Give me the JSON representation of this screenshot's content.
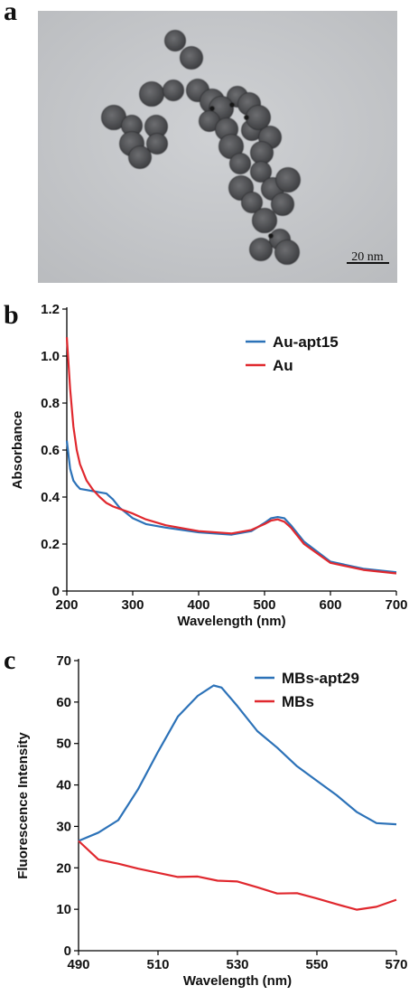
{
  "panels": {
    "a": {
      "letter": "a",
      "scale_bar_label": "20 nm"
    },
    "b": {
      "letter": "b"
    },
    "c": {
      "letter": "c"
    }
  },
  "colors": {
    "blue": "#2c72b8",
    "red": "#e0282e"
  },
  "chart_data": [
    {
      "type": "line",
      "xlabel": "Wavelength (nm)",
      "ylabel": "Absorbance",
      "xlim": [
        200,
        700
      ],
      "ylim": [
        0,
        1.2
      ],
      "xticks": [
        200,
        300,
        400,
        500,
        600,
        700
      ],
      "yticks": [
        0,
        0.2,
        0.4,
        0.6,
        0.8,
        1.0,
        1.2
      ],
      "ytick_labels": [
        "0",
        "0.2",
        "0.4",
        "0.6",
        "0.8",
        "1.0",
        "1.2"
      ],
      "grid": false,
      "legend": "top-right",
      "series": [
        {
          "name": "Au-apt15",
          "color": "#2c72b8",
          "x": [
            200,
            205,
            210,
            215,
            220,
            230,
            240,
            250,
            260,
            270,
            280,
            300,
            320,
            350,
            400,
            450,
            480,
            500,
            510,
            520,
            530,
            540,
            560,
            600,
            650,
            700
          ],
          "y": [
            0.64,
            0.52,
            0.47,
            0.45,
            0.435,
            0.43,
            0.425,
            0.42,
            0.415,
            0.39,
            0.355,
            0.31,
            0.285,
            0.27,
            0.25,
            0.24,
            0.255,
            0.29,
            0.31,
            0.315,
            0.31,
            0.28,
            0.21,
            0.125,
            0.095,
            0.08
          ]
        },
        {
          "name": "Au",
          "color": "#e0282e",
          "x": [
            200,
            205,
            210,
            215,
            220,
            230,
            240,
            250,
            260,
            270,
            280,
            300,
            320,
            350,
            400,
            450,
            480,
            500,
            510,
            520,
            530,
            540,
            560,
            600,
            650,
            700
          ],
          "y": [
            1.08,
            0.86,
            0.7,
            0.6,
            0.54,
            0.47,
            0.43,
            0.4,
            0.375,
            0.36,
            0.35,
            0.33,
            0.305,
            0.28,
            0.255,
            0.245,
            0.26,
            0.285,
            0.3,
            0.305,
            0.295,
            0.27,
            0.2,
            0.12,
            0.09,
            0.075
          ]
        }
      ]
    },
    {
      "type": "line",
      "xlabel": "Wavelength (nm)",
      "ylabel": "Fluorescence Intensity",
      "xlim": [
        490,
        570
      ],
      "ylim": [
        0,
        70
      ],
      "xticks": [
        490,
        510,
        530,
        550,
        570
      ],
      "yticks": [
        0,
        10,
        20,
        30,
        40,
        50,
        60,
        70
      ],
      "ytick_labels": [
        "0",
        "10",
        "20",
        "30",
        "40",
        "50",
        "60",
        "70"
      ],
      "grid": false,
      "legend": "top-right",
      "series": [
        {
          "name": "MBs-apt29",
          "color": "#2c72b8",
          "x": [
            490,
            495,
            500,
            505,
            510,
            515,
            520,
            524,
            526,
            530,
            535,
            540,
            545,
            550,
            555,
            560,
            565,
            570
          ],
          "y": [
            26.5,
            28.5,
            31.5,
            39,
            48,
            56.5,
            61.5,
            64,
            63.5,
            59,
            53,
            49,
            44.5,
            41,
            37.5,
            33.5,
            30.8,
            30.5
          ]
        },
        {
          "name": "MBs",
          "color": "#e0282e",
          "x": [
            490,
            495,
            500,
            505,
            510,
            515,
            520,
            525,
            530,
            535,
            540,
            545,
            550,
            555,
            560,
            565,
            570
          ],
          "y": [
            26.5,
            22,
            21,
            19.8,
            18.8,
            17.8,
            17.9,
            16.9,
            16.7,
            15.3,
            13.8,
            13.9,
            12.6,
            11.2,
            9.9,
            10.6,
            12.3
          ]
        }
      ]
    }
  ]
}
